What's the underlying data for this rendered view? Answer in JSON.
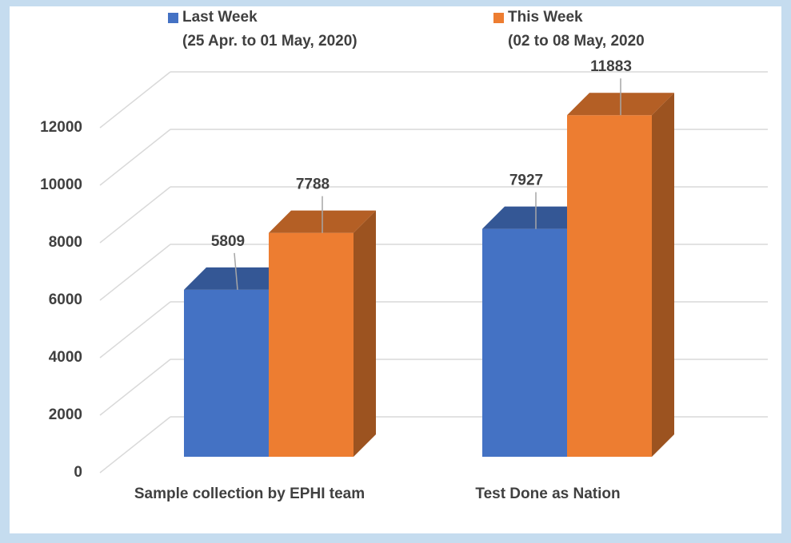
{
  "chart_data": {
    "type": "bar3d",
    "categories": [
      "Sample collection by EPHI team",
      "Test Done as Nation"
    ],
    "series": [
      {
        "name": "Last Week\n(25 Apr. to 01 May, 2020)",
        "color": "#4472c4",
        "values": [
          5809,
          7927
        ]
      },
      {
        "name": "This Week\n(02 to 08 May, 2020",
        "color": "#ed7d31",
        "values": [
          7788,
          11883
        ]
      }
    ],
    "ylim": [
      0,
      12000
    ],
    "yticks": [
      0,
      2000,
      4000,
      6000,
      8000,
      10000,
      12000
    ],
    "grid": true
  }
}
